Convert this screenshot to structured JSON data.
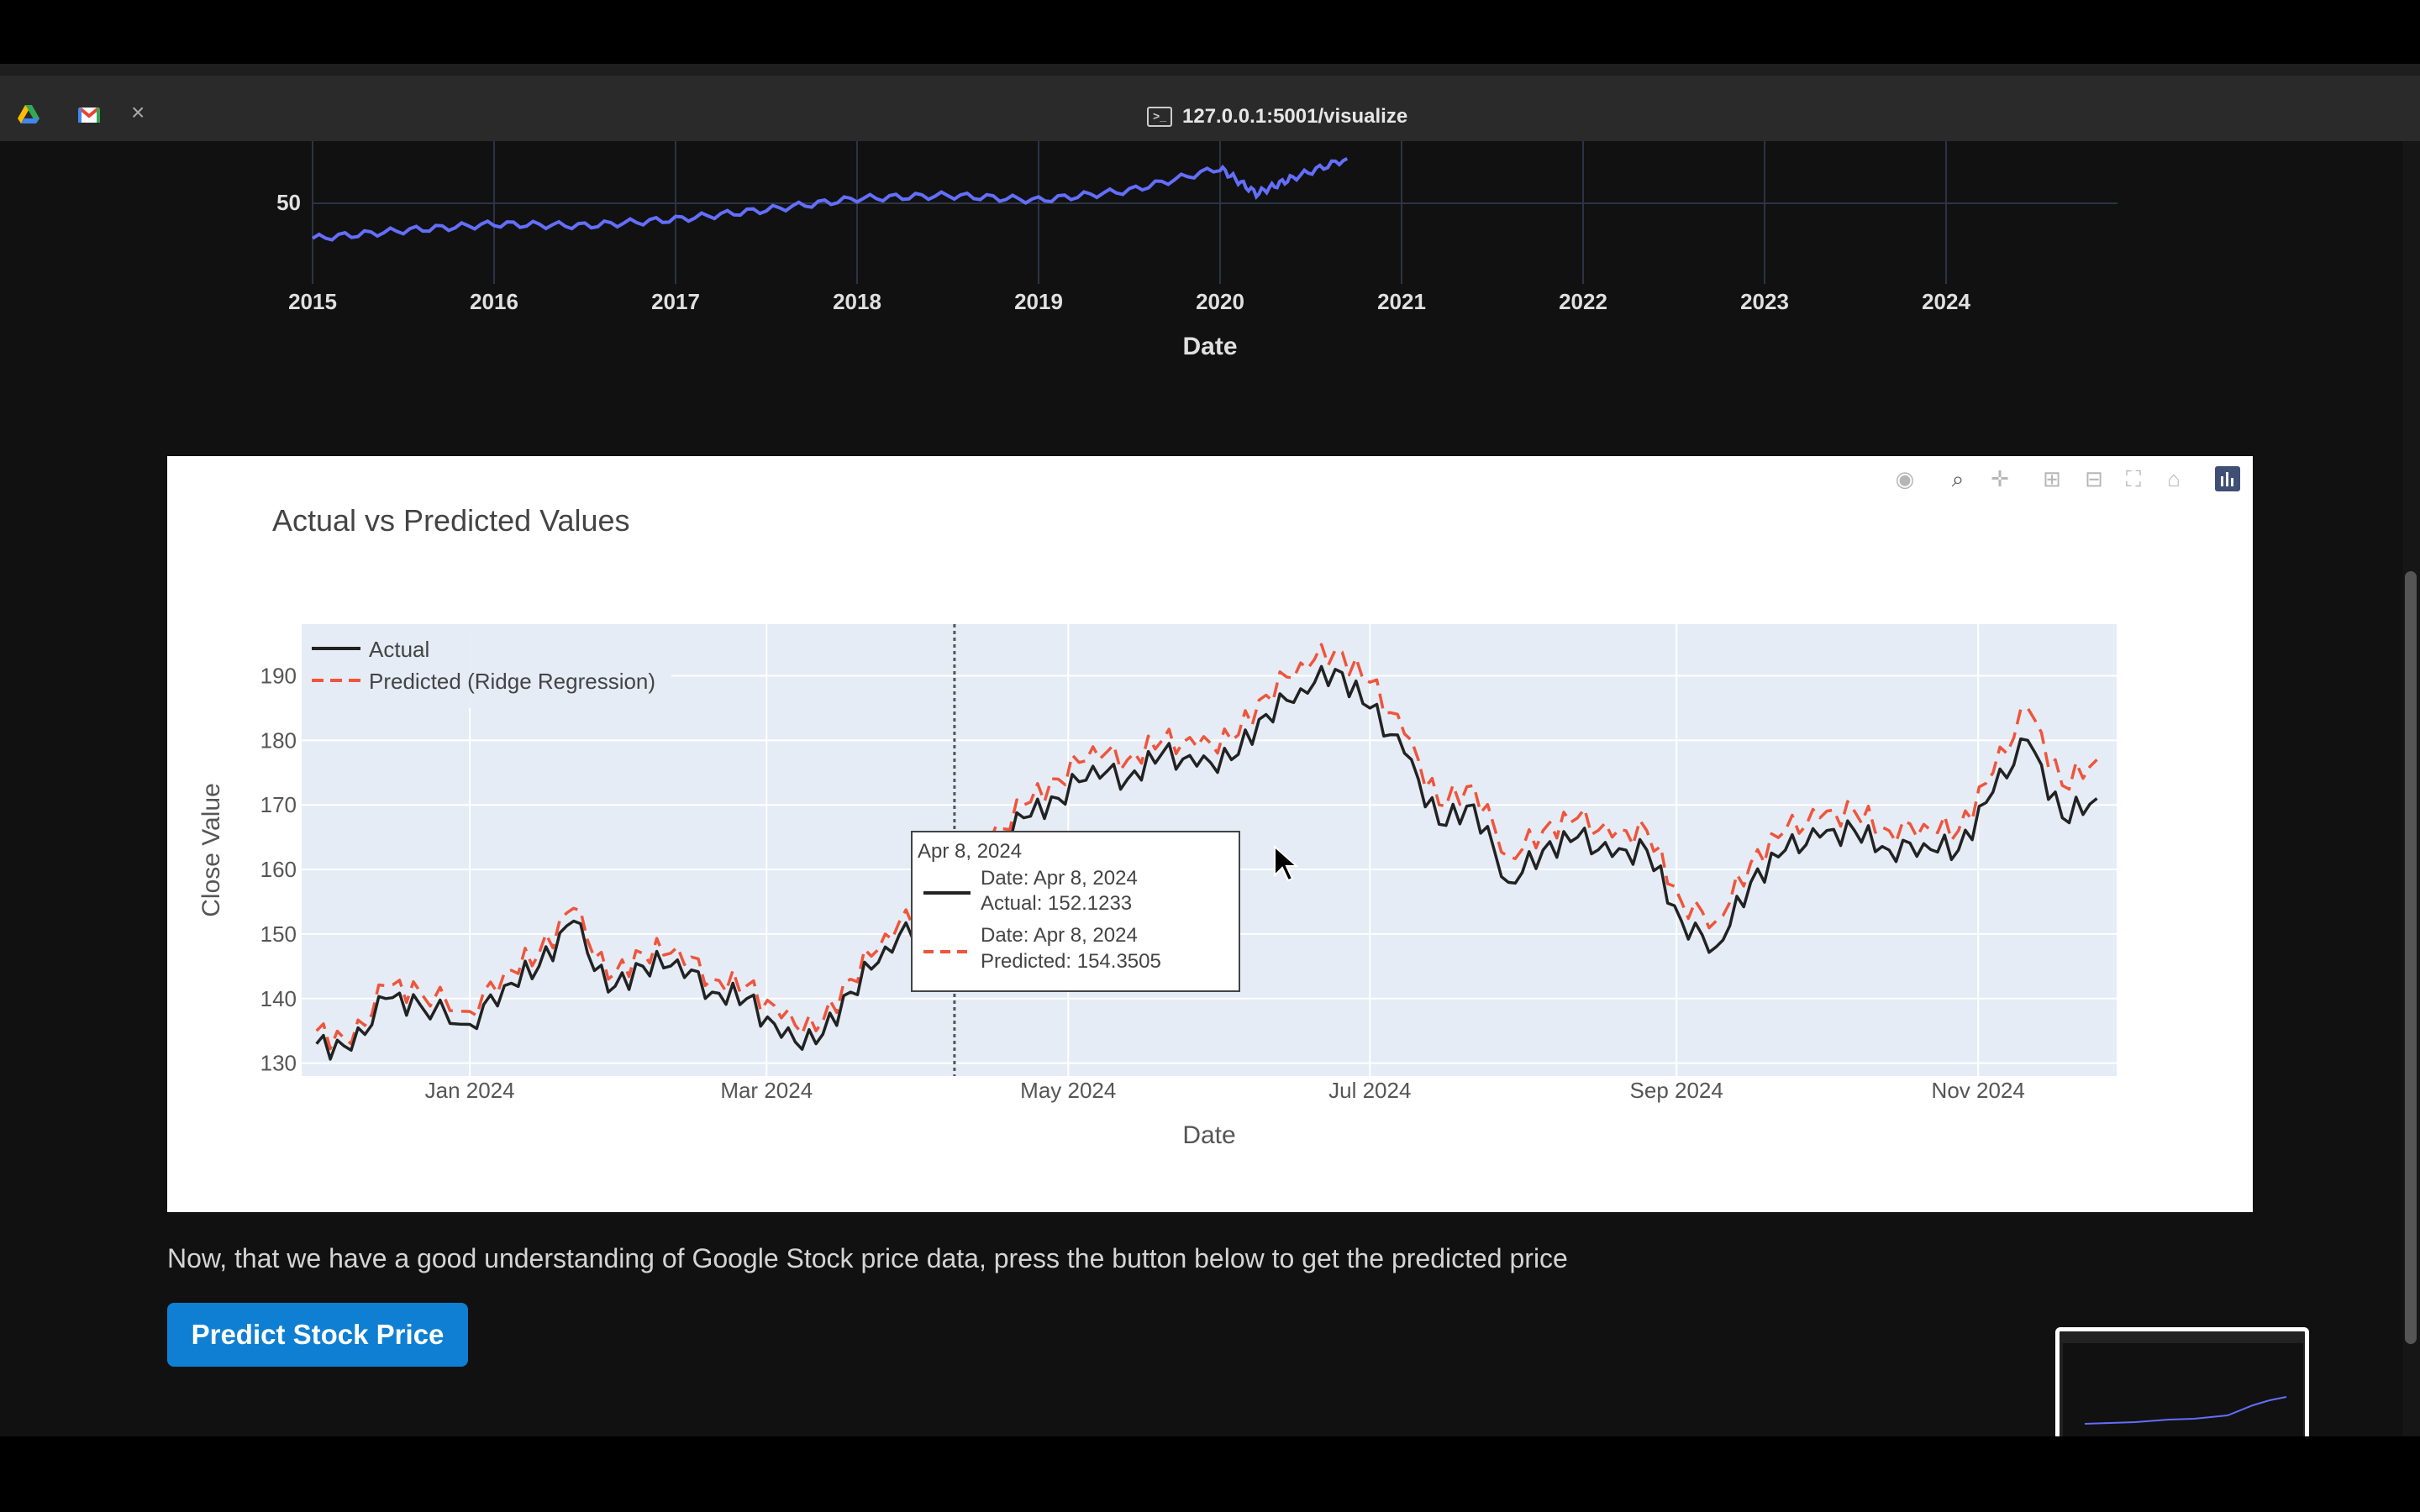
{
  "browser": {
    "url": "127.0.0.1:5001/visualize",
    "close_glyph": "×",
    "tabs": [
      {
        "icon": "google-drive-icon"
      },
      {
        "icon": "gmail-icon"
      }
    ]
  },
  "chart_top": {
    "type": "line",
    "xlabel": "Date",
    "x_ticks": [
      "2015",
      "2016",
      "2017",
      "2018",
      "2019",
      "2020",
      "2021",
      "2022",
      "2023",
      "2024"
    ],
    "y_ticks": [
      "50"
    ],
    "series_color": "#636efa",
    "chart_data": {
      "type": "line",
      "x": [
        2015.0,
        2015.5,
        2016.0,
        2016.5,
        2017.0,
        2017.5,
        2018.0,
        2018.5,
        2019.0,
        2019.5,
        2020.0,
        2020.2,
        2020.4,
        2020.7
      ],
      "values": [
        28,
        33,
        37,
        36,
        40,
        46,
        53,
        55,
        52,
        58,
        72,
        56,
        66,
        78
      ]
    }
  },
  "chart_main": {
    "title": "Actual vs Predicted Values",
    "xlabel": "Date",
    "ylabel": "Close Value",
    "x_ticks": [
      "Jan 2024",
      "Mar 2024",
      "May 2024",
      "Jul 2024",
      "Sep 2024",
      "Nov 2024"
    ],
    "y_ticks": [
      "130",
      "140",
      "150",
      "160",
      "170",
      "180",
      "190"
    ],
    "legend": {
      "actual": "Actual",
      "predicted": "Predicted (Ridge Regression)"
    },
    "tooltip": {
      "header": "Apr 8, 2024",
      "actual_date": "Date: Apr 8, 2024",
      "actual_value": "Actual: 152.1233",
      "pred_date": "Date: Apr 8, 2024",
      "pred_value": "Predicted: 154.3505"
    },
    "colors": {
      "actual": "#222222",
      "predicted": "#ef553b",
      "plot_bg": "#e5ecf6"
    }
  },
  "chart_data": {
    "type": "line",
    "title": "Actual vs Predicted Values",
    "xlabel": "Date",
    "ylabel": "Close Value",
    "ylim": [
      128,
      198
    ],
    "x": [
      "2023-12-01",
      "2023-12-08",
      "2023-12-15",
      "2023-12-22",
      "2024-01-01",
      "2024-01-08",
      "2024-01-15",
      "2024-01-22",
      "2024-01-29",
      "2024-02-05",
      "2024-02-12",
      "2024-02-19",
      "2024-02-26",
      "2024-03-04",
      "2024-03-11",
      "2024-03-18",
      "2024-03-25",
      "2024-04-01",
      "2024-04-08",
      "2024-04-15",
      "2024-04-22",
      "2024-04-29",
      "2024-05-06",
      "2024-05-13",
      "2024-05-20",
      "2024-05-27",
      "2024-06-03",
      "2024-06-10",
      "2024-06-17",
      "2024-06-24",
      "2024-07-01",
      "2024-07-08",
      "2024-07-15",
      "2024-07-22",
      "2024-07-29",
      "2024-08-05",
      "2024-08-12",
      "2024-08-19",
      "2024-08-26",
      "2024-09-02",
      "2024-09-09",
      "2024-09-16",
      "2024-09-23",
      "2024-09-30",
      "2024-10-07",
      "2024-10-14",
      "2024-10-21",
      "2024-10-28",
      "2024-11-04",
      "2024-11-11",
      "2024-11-18",
      "2024-11-25"
    ],
    "series": [
      {
        "name": "Actual",
        "values": [
          133,
          132,
          140,
          139,
          136,
          142,
          145,
          152,
          141,
          145,
          146,
          141,
          140,
          134,
          133,
          141,
          148,
          152,
          152.12,
          162,
          168,
          171,
          176,
          174,
          178,
          176,
          177,
          184,
          188,
          191,
          185,
          178,
          167,
          170,
          158,
          163,
          165,
          162,
          163,
          152,
          148,
          158,
          163,
          165,
          166,
          163,
          164,
          163,
          172,
          180,
          168,
          171
        ]
      },
      {
        "name": "Predicted (Ridge Regression)",
        "values": [
          135,
          133,
          142,
          141,
          138,
          144,
          147,
          154,
          143,
          147,
          148,
          143,
          142,
          137,
          135,
          143,
          150,
          154,
          154.35,
          164,
          170,
          174,
          179,
          177,
          180,
          179,
          180,
          187,
          192,
          194,
          189,
          181,
          170,
          173,
          162,
          166,
          168,
          165,
          166,
          155,
          152,
          161,
          166,
          168,
          169,
          166,
          167,
          166,
          175,
          185,
          173,
          177
        ]
      }
    ]
  },
  "caption": "Now, that we have a good understanding of Google Stock price data, press the button below to get the predicted price",
  "button": {
    "label": "Predict Stock Price"
  },
  "modebar": [
    "camera-icon",
    "zoom-icon",
    "pan-icon",
    "zoom-in-icon",
    "zoom-out-icon",
    "autoscale-icon",
    "home-icon",
    "plotly-logo-icon"
  ]
}
